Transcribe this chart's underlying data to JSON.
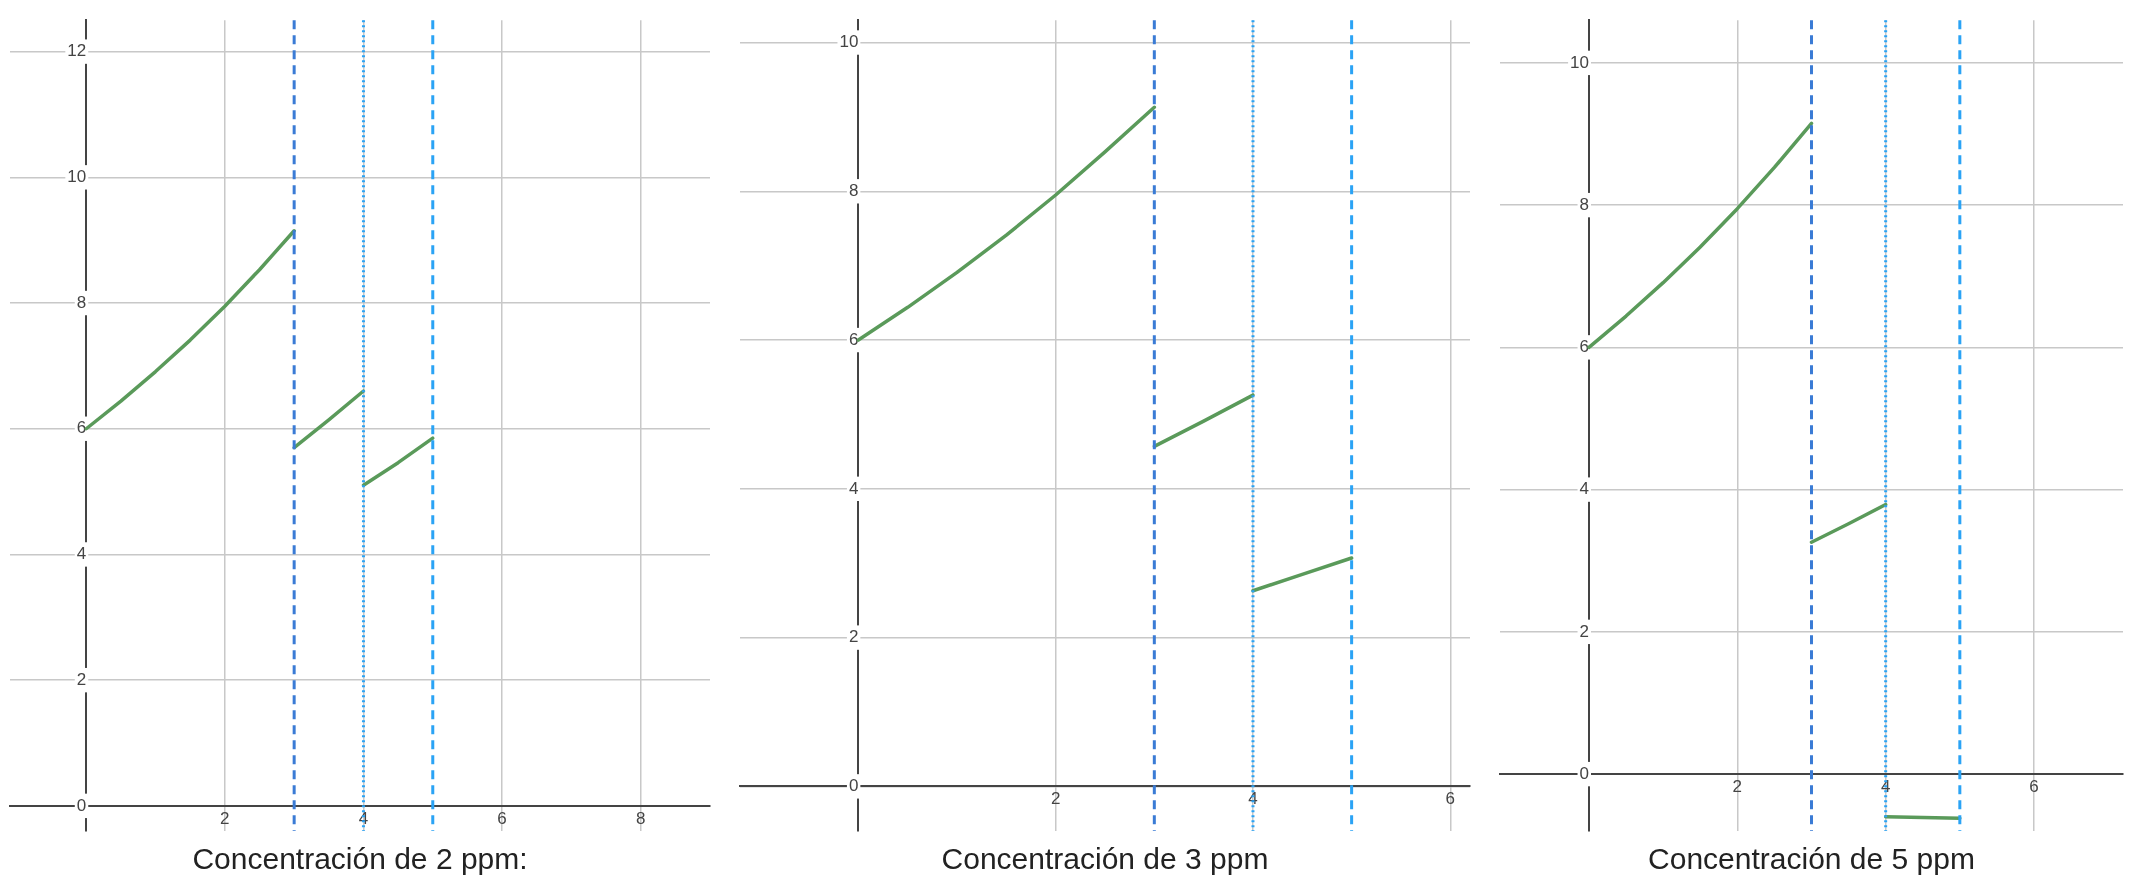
{
  "chart_data": [
    {
      "type": "line",
      "title": "Concentración de 2 ppm:",
      "xlim": [
        -1.1,
        9
      ],
      "ylim": [
        -0.4,
        12.5
      ],
      "xticks": [
        2,
        4,
        6,
        8
      ],
      "yticks": [
        0,
        2,
        4,
        6,
        8,
        10,
        12
      ],
      "grid": true,
      "marker": "none",
      "series": [
        {
          "color": "#5a9a5a",
          "x": [
            0,
            0.5,
            1,
            1.5,
            2,
            2.5,
            3
          ],
          "values": [
            6,
            6.44,
            6.91,
            7.41,
            7.95,
            8.53,
            9.15
          ]
        },
        {
          "color": "#5a9a5a",
          "x": [
            3,
            3.5,
            4
          ],
          "values": [
            5.7,
            6.14,
            6.6
          ]
        },
        {
          "color": "#5a9a5a",
          "x": [
            4,
            4.5,
            5
          ],
          "values": [
            5.1,
            5.46,
            5.85
          ]
        }
      ],
      "ref_lines": [
        {
          "axis": "x",
          "value": 3,
          "color": "#3a7bd5",
          "line_style": "dashed"
        },
        {
          "axis": "x",
          "value": 4,
          "color": "#2aa3f5",
          "line_style": "dotted"
        },
        {
          "axis": "x",
          "value": 5,
          "color": "#2aa3f5",
          "line_style": "dashed"
        }
      ]
    },
    {
      "type": "line",
      "title": "Concentración de 3 ppm",
      "xlim": [
        -1.2,
        6.2
      ],
      "ylim": [
        -0.6,
        10.3
      ],
      "xticks": [
        2,
        4,
        6
      ],
      "yticks": [
        0,
        2,
        4,
        6,
        8,
        10
      ],
      "grid": true,
      "marker": "none",
      "series": [
        {
          "color": "#5a9a5a",
          "x": [
            0,
            0.5,
            1,
            1.5,
            2,
            2.5,
            3
          ],
          "values": [
            6,
            6.44,
            6.91,
            7.41,
            7.95,
            8.53,
            9.13
          ]
        },
        {
          "color": "#5a9a5a",
          "x": [
            3,
            3.5,
            4
          ],
          "values": [
            4.57,
            4.91,
            5.26
          ]
        },
        {
          "color": "#5a9a5a",
          "x": [
            4,
            4.5,
            5
          ],
          "values": [
            2.63,
            2.85,
            3.07
          ]
        }
      ],
      "ref_lines": [
        {
          "axis": "x",
          "value": 3,
          "color": "#3a7bd5",
          "line_style": "dashed"
        },
        {
          "axis": "x",
          "value": 4,
          "color": "#2aa3f5",
          "line_style": "dotted"
        },
        {
          "axis": "x",
          "value": 5,
          "color": "#2aa3f5",
          "line_style": "dashed"
        }
      ]
    },
    {
      "type": "line",
      "title": "Concentración de 5 ppm",
      "xlim": [
        -1.2,
        7.2
      ],
      "ylim": [
        -0.8,
        10.6
      ],
      "xticks": [
        2,
        4,
        6
      ],
      "yticks": [
        0,
        2,
        4,
        6,
        8,
        10
      ],
      "grid": true,
      "marker": "none",
      "series": [
        {
          "color": "#5a9a5a",
          "x": [
            0,
            0.5,
            1,
            1.5,
            2,
            2.5,
            3
          ],
          "values": [
            6,
            6.44,
            6.91,
            7.41,
            7.95,
            8.53,
            9.15
          ]
        },
        {
          "color": "#5a9a5a",
          "x": [
            3,
            3.5,
            4
          ],
          "values": [
            3.26,
            3.52,
            3.79
          ]
        },
        {
          "color": "#5a9a5a",
          "x": [
            4,
            5
          ],
          "values": [
            -0.6,
            -0.62
          ]
        }
      ],
      "ref_lines": [
        {
          "axis": "x",
          "value": 3,
          "color": "#3a7bd5",
          "line_style": "dashed"
        },
        {
          "axis": "x",
          "value": 4,
          "color": "#2aa3f5",
          "line_style": "dotted"
        },
        {
          "axis": "x",
          "value": 5,
          "color": "#2aa3f5",
          "line_style": "dashed"
        }
      ]
    }
  ]
}
